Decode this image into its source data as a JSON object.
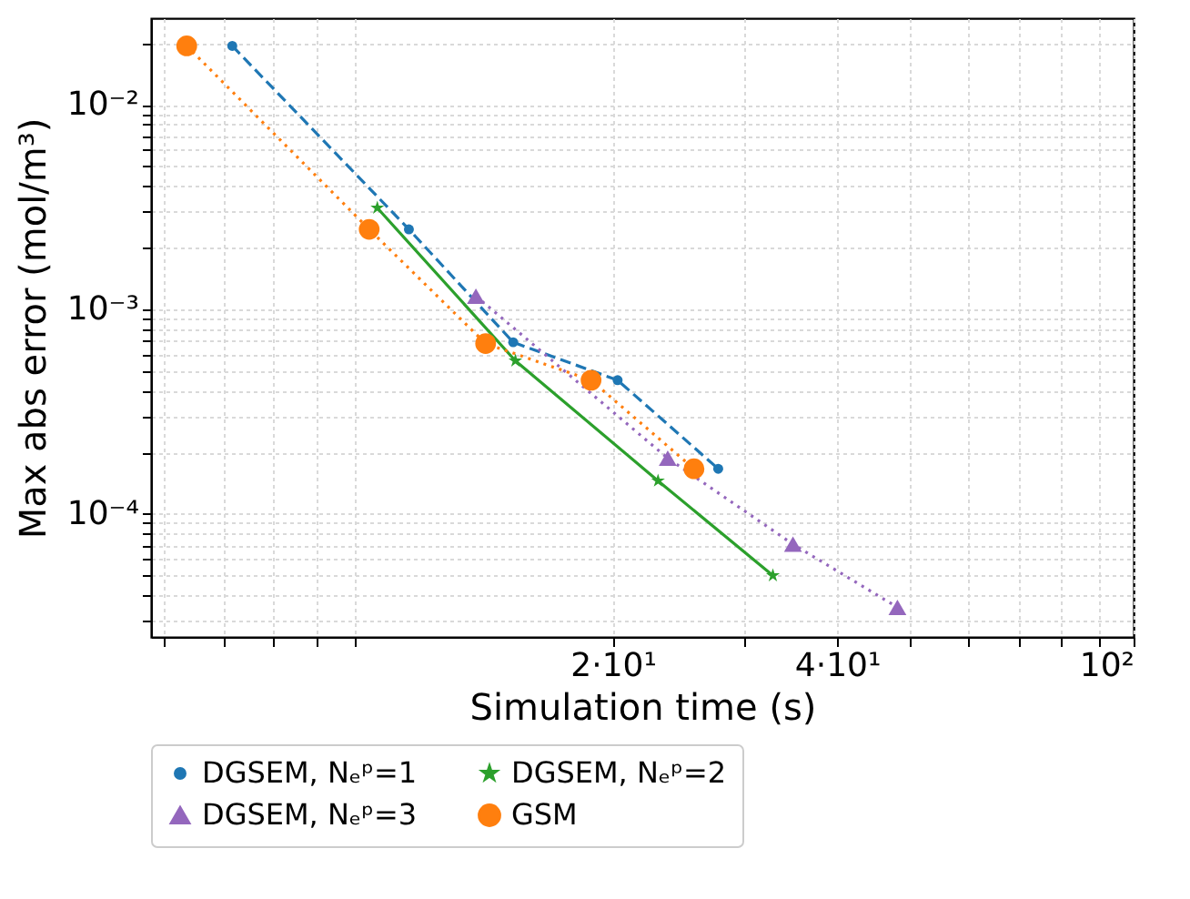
{
  "chart_data": {
    "type": "line",
    "xlabel": "Simulation time (s)",
    "ylabel": "Max abs error (mol/m³)",
    "log": "xy",
    "grid": true,
    "legend": "bottom",
    "xlim": [
      4.8,
      100
    ],
    "ylim": [
      2.5e-05,
      0.0265
    ],
    "xticks": [
      {
        "value": 5,
        "label": null
      },
      {
        "value": 6,
        "label": null
      },
      {
        "value": 7,
        "label": null
      },
      {
        "value": 8,
        "label": null
      },
      {
        "value": 9,
        "label": null
      },
      {
        "value": 20,
        "label": "2·10¹"
      },
      {
        "value": 30,
        "label": null
      },
      {
        "value": 40,
        "label": "4·10¹"
      },
      {
        "value": 50,
        "label": null
      },
      {
        "value": 60,
        "label": null
      },
      {
        "value": 70,
        "label": null
      },
      {
        "value": 80,
        "label": null
      },
      {
        "value": 90,
        "label": null
      },
      {
        "value": 100,
        "label": "10²"
      }
    ],
    "yticks": [
      {
        "value": 3e-05,
        "label": null
      },
      {
        "value": 4e-05,
        "label": null
      },
      {
        "value": 5e-05,
        "label": null
      },
      {
        "value": 6e-05,
        "label": null
      },
      {
        "value": 7e-05,
        "label": null
      },
      {
        "value": 8e-05,
        "label": null
      },
      {
        "value": 9e-05,
        "label": null
      },
      {
        "value": 0.0001,
        "label": "10⁻⁴"
      },
      {
        "value": 0.0002,
        "label": null
      },
      {
        "value": 0.0003,
        "label": null
      },
      {
        "value": 0.0004,
        "label": null
      },
      {
        "value": 0.0005,
        "label": null
      },
      {
        "value": 0.0006,
        "label": null
      },
      {
        "value": 0.0007,
        "label": null
      },
      {
        "value": 0.0008,
        "label": null
      },
      {
        "value": 0.0009,
        "label": null
      },
      {
        "value": 0.001,
        "label": "10⁻³"
      },
      {
        "value": 0.002,
        "label": null
      },
      {
        "value": 0.003,
        "label": null
      },
      {
        "value": 0.004,
        "label": null
      },
      {
        "value": 0.005,
        "label": null
      },
      {
        "value": 0.006,
        "label": null
      },
      {
        "value": 0.007,
        "label": null
      },
      {
        "value": 0.008,
        "label": null
      },
      {
        "value": 0.009,
        "label": null
      },
      {
        "value": 0.01,
        "label": "10⁻²"
      },
      {
        "value": 0.02,
        "label": null
      }
    ],
    "series": [
      {
        "name": "DGSEM, Nₑᵖ=1",
        "color": "#1f77b4",
        "marker": "circle",
        "line_style": "dashed",
        "x": [
          6.17,
          10.65,
          14.7,
          20.3,
          27.7
        ],
        "values": [
          0.0194,
          0.00246,
          0.00069,
          0.00045,
          0.000166
        ]
      },
      {
        "name": "DGSEM, Nₑᵖ=2",
        "color": "#2ca02c",
        "marker": "star",
        "line_style": "solid",
        "x": [
          9.66,
          14.8,
          23.0,
          32.8
        ],
        "values": [
          0.00313,
          0.00056,
          0.000145,
          4.99e-05
        ]
      },
      {
        "name": "DGSEM, Nₑᵖ=3",
        "color": "#9467bd",
        "marker": "triangle",
        "line_style": "dotted",
        "x": [
          13.1,
          23.7,
          34.9,
          48.2
        ],
        "values": [
          0.00116,
          0.000187,
          7.1e-05,
          3.49e-05
        ]
      },
      {
        "name": "GSM",
        "color": "#ff7f0e",
        "marker": "circle",
        "line_style": "dotted",
        "x": [
          5.36,
          9.42,
          13.5,
          18.7,
          25.7
        ],
        "values": [
          0.0194,
          0.00246,
          0.00068,
          0.00045,
          0.000166
        ]
      }
    ]
  }
}
